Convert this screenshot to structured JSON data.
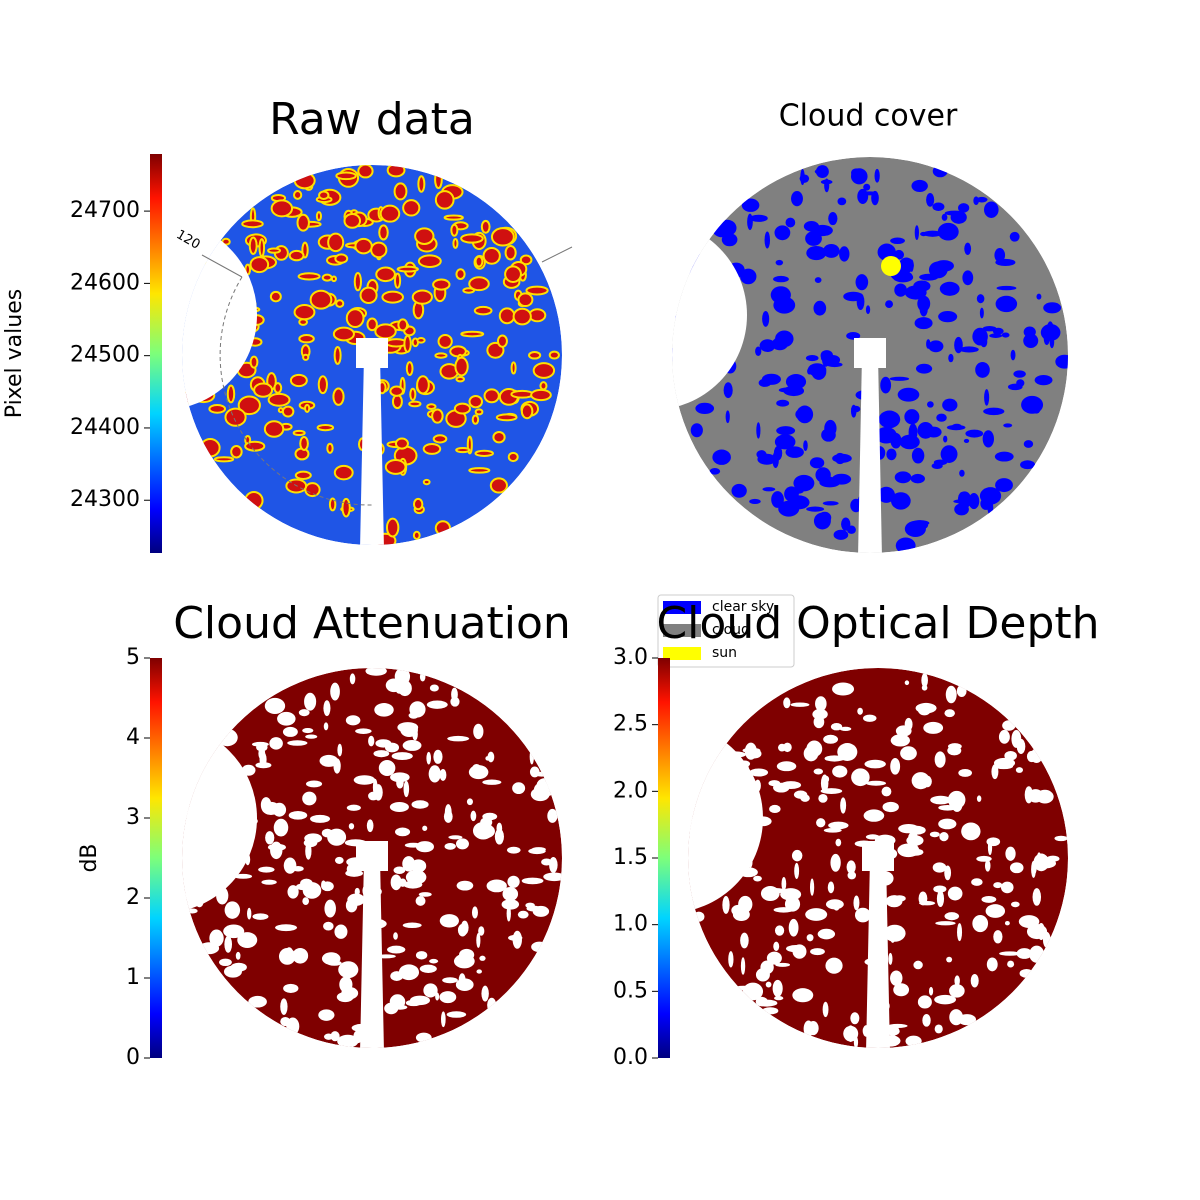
{
  "chart_data": [
    {
      "type": "image",
      "title": "Raw data",
      "annotations": [
        "120"
      ],
      "colorbar": {
        "label": "Pixel values",
        "colormap": "jet",
        "lim": [
          24227,
          24779
        ],
        "ticks": [
          24300,
          24400,
          24500,
          24600,
          24700
        ]
      }
    },
    {
      "type": "image",
      "title": "Cloud cover",
      "legend": {
        "loc": "lower left",
        "series": [
          {
            "name": "clear sky",
            "color": "#0000ff"
          },
          {
            "name": "cloud",
            "color": "#808080"
          },
          {
            "name": "sun",
            "color": "#ffff00"
          }
        ]
      }
    },
    {
      "type": "image",
      "title": "Cloud Attenuation",
      "colorbar": {
        "label": "dB",
        "colormap": "jet",
        "lim": [
          0,
          5
        ],
        "ticks": [
          0,
          1,
          2,
          3,
          4,
          5
        ]
      }
    },
    {
      "type": "image",
      "title": "Cloud Optical Depth",
      "colorbar": {
        "colormap": "jet",
        "lim": [
          0,
          3
        ],
        "ticks": [
          {
            "value": 0,
            "label": "0.0"
          },
          0.5,
          {
            "value": 1,
            "label": "1.0"
          },
          1.5,
          {
            "value": 2,
            "label": "2.0"
          },
          2.5,
          {
            "value": 3,
            "label": "3.0"
          }
        ]
      }
    }
  ]
}
